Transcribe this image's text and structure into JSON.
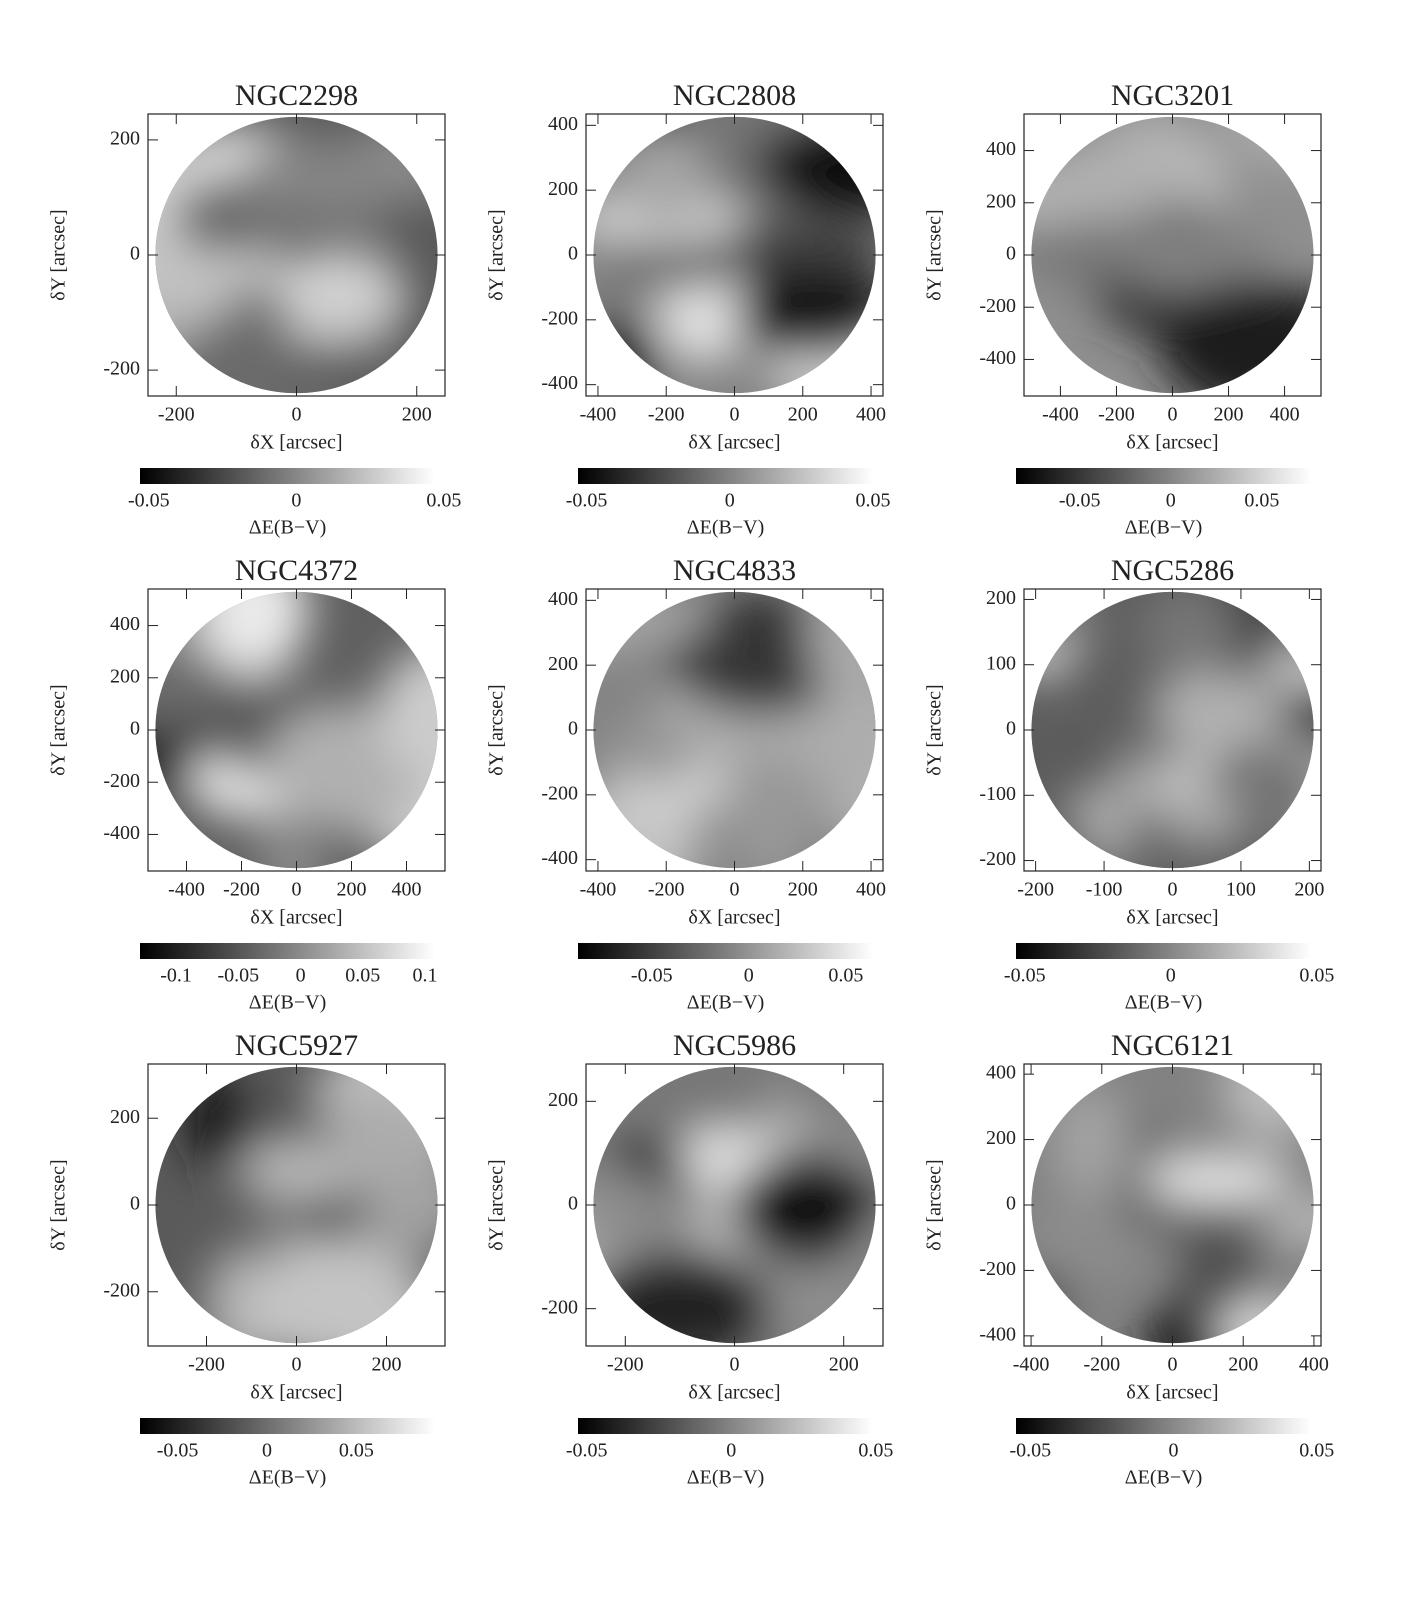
{
  "chart_data": [
    {
      "type": "heatmap",
      "title": "NGC2298",
      "xlabel": "δX [arcsec]",
      "ylabel": "δY [arcsec]",
      "xlim": [
        -247,
        247
      ],
      "ylim": [
        -245,
        245
      ],
      "xticks": [
        -200,
        0,
        200
      ],
      "yticks": [
        -200,
        0,
        200
      ],
      "colorbar": {
        "label": "ΔE(B−V)",
        "lim": [
          -0.053,
          0.047
        ],
        "ticks": [
          -0.05,
          0,
          0.05
        ]
      }
    },
    {
      "type": "heatmap",
      "title": "NGC2808",
      "xlabel": "δX [arcsec]",
      "ylabel": "δY [arcsec]",
      "xlim": [
        -435,
        435
      ],
      "ylim": [
        -435,
        435
      ],
      "xticks": [
        -400,
        -200,
        0,
        200,
        400
      ],
      "yticks": [
        -400,
        -200,
        0,
        200,
        400
      ],
      "colorbar": {
        "label": "ΔE(B−V)",
        "lim": [
          -0.053,
          0.05
        ],
        "ticks": [
          -0.05,
          0,
          0.05
        ]
      }
    },
    {
      "type": "heatmap",
      "title": "NGC3201",
      "xlabel": "δX [arcsec]",
      "ylabel": "δY [arcsec]",
      "xlim": [
        -530,
        530
      ],
      "ylim": [
        -540,
        540
      ],
      "xticks": [
        -400,
        -200,
        0,
        200,
        400
      ],
      "yticks": [
        -400,
        -200,
        0,
        200,
        400
      ],
      "colorbar": {
        "label": "ΔE(B−V)",
        "lim": [
          -0.085,
          0.077
        ],
        "ticks": [
          -0.05,
          0,
          0.05
        ]
      }
    },
    {
      "type": "heatmap",
      "title": "NGC4372",
      "xlabel": "δX [arcsec]",
      "ylabel": "δY [arcsec]",
      "xlim": [
        -540,
        540
      ],
      "ylim": [
        -540,
        540
      ],
      "xticks": [
        -400,
        -200,
        0,
        200,
        400
      ],
      "yticks": [
        -400,
        -200,
        0,
        200,
        400
      ],
      "colorbar": {
        "label": "ΔE(B−V)",
        "lim": [
          -0.129,
          0.108
        ],
        "ticks": [
          -0.1,
          -0.05,
          0,
          0.05,
          0.1
        ]
      }
    },
    {
      "type": "heatmap",
      "title": "NGC4833",
      "xlabel": "δX [arcsec]",
      "ylabel": "δY [arcsec]",
      "xlim": [
        -435,
        435
      ],
      "ylim": [
        -435,
        435
      ],
      "xticks": [
        -400,
        -200,
        0,
        200,
        400
      ],
      "yticks": [
        -400,
        -200,
        0,
        200,
        400
      ],
      "colorbar": {
        "label": "ΔE(B−V)",
        "lim": [
          -0.088,
          0.064
        ],
        "ticks": [
          -0.05,
          0,
          0.05
        ]
      }
    },
    {
      "type": "heatmap",
      "title": "NGC5286",
      "xlabel": "δX [arcsec]",
      "ylabel": "δY [arcsec]",
      "xlim": [
        -217,
        217
      ],
      "ylim": [
        -216,
        216
      ],
      "xticks": [
        -200,
        -100,
        0,
        100,
        200
      ],
      "yticks": [
        -200,
        -100,
        0,
        100,
        200
      ],
      "colorbar": {
        "label": "ΔE(B−V)",
        "lim": [
          -0.053,
          0.048
        ],
        "ticks": [
          -0.05,
          0,
          0.05
        ]
      }
    },
    {
      "type": "heatmap",
      "title": "NGC5927",
      "xlabel": "δX [arcsec]",
      "ylabel": "δY [arcsec]",
      "xlim": [
        -330,
        330
      ],
      "ylim": [
        -325,
        325
      ],
      "xticks": [
        -200,
        0,
        200
      ],
      "yticks": [
        -200,
        0,
        200
      ],
      "colorbar": {
        "label": "ΔE(B−V)",
        "lim": [
          -0.071,
          0.094
        ],
        "ticks": [
          -0.05,
          0,
          0.05
        ]
      }
    },
    {
      "type": "heatmap",
      "title": "NGC5986",
      "xlabel": "δX [arcsec]",
      "ylabel": "δY [arcsec]",
      "xlim": [
        -272,
        272
      ],
      "ylim": [
        -272,
        272
      ],
      "xticks": [
        -200,
        0,
        200
      ],
      "yticks": [
        -200,
        0,
        200
      ],
      "colorbar": {
        "label": "ΔE(B−V)",
        "lim": [
          -0.053,
          0.049
        ],
        "ticks": [
          -0.05,
          0,
          0.05
        ]
      }
    },
    {
      "type": "heatmap",
      "title": "NGC6121",
      "xlabel": "δX [arcsec]",
      "ylabel": "δY [arcsec]",
      "xlim": [
        -420,
        420
      ],
      "ylim": [
        -431,
        431
      ],
      "xticks": [
        -400,
        -200,
        0,
        200,
        400
      ],
      "yticks": [
        -400,
        -200,
        0,
        200,
        400
      ],
      "colorbar": {
        "label": "ΔE(B−V)",
        "lim": [
          -0.055,
          0.048
        ],
        "ticks": [
          -0.05,
          0,
          0.05
        ]
      }
    }
  ]
}
